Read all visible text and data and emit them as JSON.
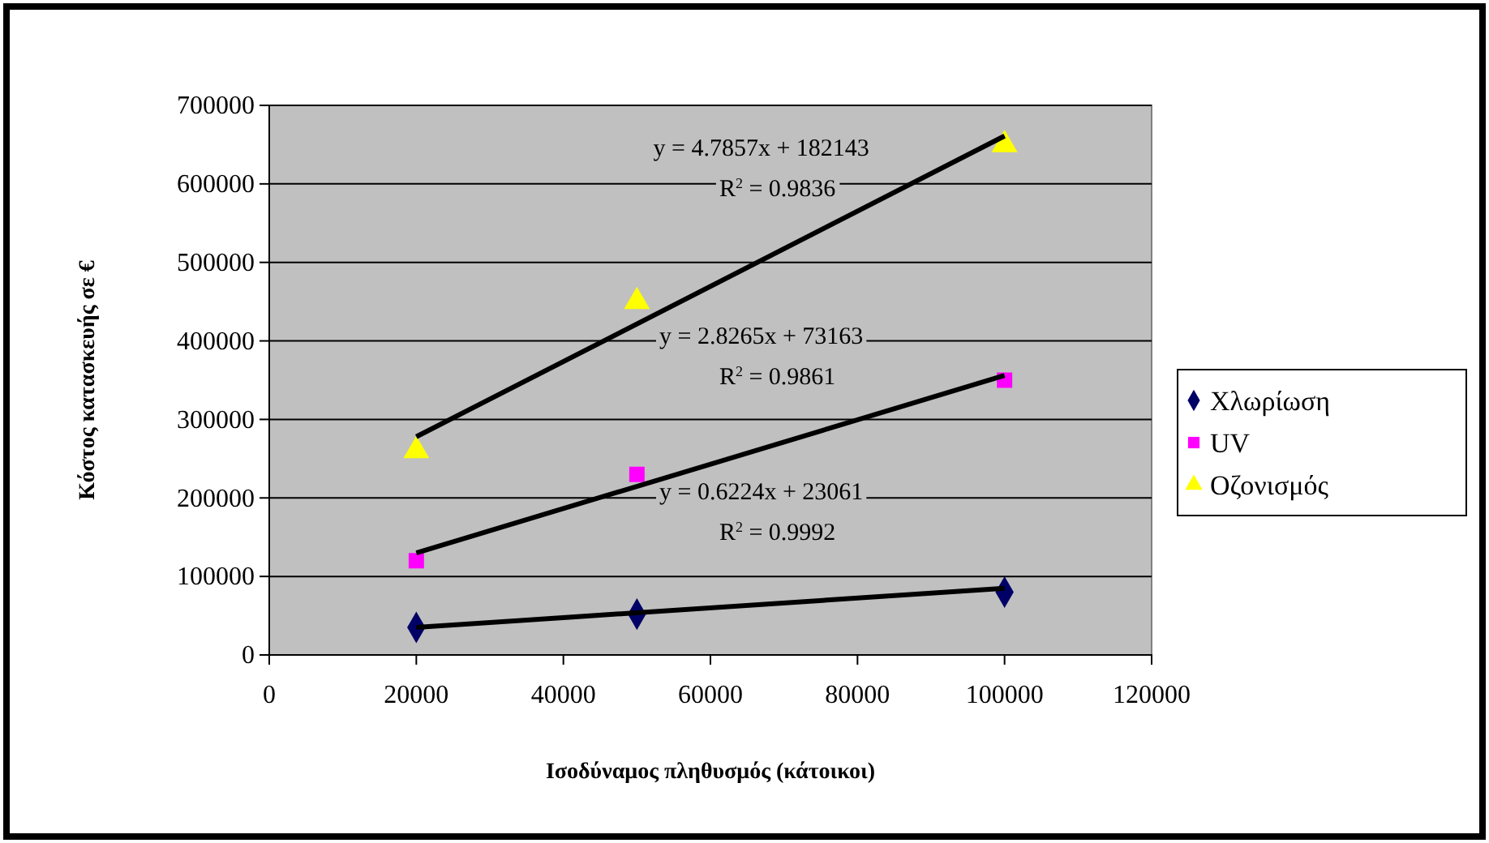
{
  "chart_data": {
    "type": "scatter",
    "xlabel": "Ισοδύναμος πληθυσμός (κάτοικοι)",
    "ylabel": "Κόστος κατασκευής σε €",
    "xlim": [
      0,
      120000
    ],
    "xticks": [
      0,
      20000,
      40000,
      60000,
      80000,
      100000,
      120000
    ],
    "ylim": [
      0,
      700000
    ],
    "yticks": [
      0,
      100000,
      200000,
      300000,
      400000,
      500000,
      600000,
      700000
    ],
    "grid": "y",
    "legend": "right",
    "series": [
      {
        "name": "Χλωρίωση",
        "color": "#000066",
        "marker": "diamond",
        "x": [
          20000,
          50000,
          100000
        ],
        "values": [
          35000,
          52000,
          80000
        ]
      },
      {
        "name": "UV",
        "color": "#ff00ff",
        "marker": "square",
        "x": [
          20000,
          50000,
          100000
        ],
        "values": [
          120000,
          230000,
          350000
        ]
      },
      {
        "name": "Οζονισμός",
        "color": "#ffff00",
        "marker": "triangle",
        "x": [
          20000,
          50000,
          100000
        ],
        "values": [
          260000,
          450000,
          650000
        ]
      },
      {
        "type": "line",
        "color": "#000000",
        "marker": "none",
        "x": [
          20000,
          100000
        ],
        "values": [
          278000,
          661000
        ]
      },
      {
        "type": "line",
        "color": "#000000",
        "marker": "none",
        "x": [
          20000,
          100000
        ],
        "values": [
          130000,
          356000
        ]
      },
      {
        "type": "line",
        "color": "#000000",
        "marker": "none",
        "x": [
          20000,
          100000
        ],
        "values": [
          35000,
          85000
        ]
      }
    ],
    "annotations": [
      "y = 4.7857x + 182143",
      "R$^{2}$ = 0.9836",
      "y = 2.8265x + 73163",
      "R$^{2}$ = 0.9861",
      "y = 0.6224x + 23061",
      "R$^{2}$ = 0.9992"
    ]
  }
}
